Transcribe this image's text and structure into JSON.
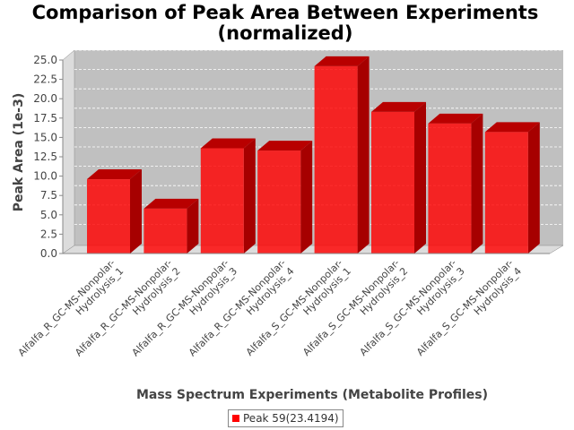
{
  "chart_data": {
    "type": "bar",
    "title": "Comparison of Peak Area Between Experiments",
    "subtitle": "(normalized)",
    "xlabel": "Mass Spectrum Experiments (Metabolite Profiles)",
    "ylabel": "Peak Area (1e-3)",
    "ylim": [
      0,
      25
    ],
    "yticks": [
      "0.0",
      "2.5",
      "5.0",
      "7.5",
      "10.0",
      "12.5",
      "15.0",
      "17.5",
      "20.0",
      "22.5",
      "25.0"
    ],
    "grid": true,
    "legend_position": "bottom",
    "categories": [
      [
        "Alfalfa_R_GC-MS-Nonpolar-",
        "Hydrolysis_1"
      ],
      [
        "Alfalfa_R_GC-MS-Nonpolar-",
        "Hydrolysis_2"
      ],
      [
        "Alfalfa_R_GC-MS-Nonpolar-",
        "Hydrolysis_3"
      ],
      [
        "Alfalfa_R_GC-MS-Nonpolar-",
        "Hydrolysis_4"
      ],
      [
        "Alfalfa_S_GC-MS-Nonpolar-",
        "Hydrolysis_1"
      ],
      [
        "Alfalfa_S_GC-MS-Nonpolar-",
        "Hydrolysis_2"
      ],
      [
        "Alfalfa_S_GC-MS-Nonpolar-",
        "Hydrolysis_3"
      ],
      [
        "Alfalfa_S_GC-MS-Nonpolar-",
        "Hydrolysis_4"
      ]
    ],
    "series": [
      {
        "name": "Peak 59(23.4194)",
        "color": "#ff0000",
        "values": [
          9.6,
          5.8,
          13.6,
          13.3,
          24.2,
          18.3,
          16.8,
          15.7
        ]
      }
    ]
  }
}
